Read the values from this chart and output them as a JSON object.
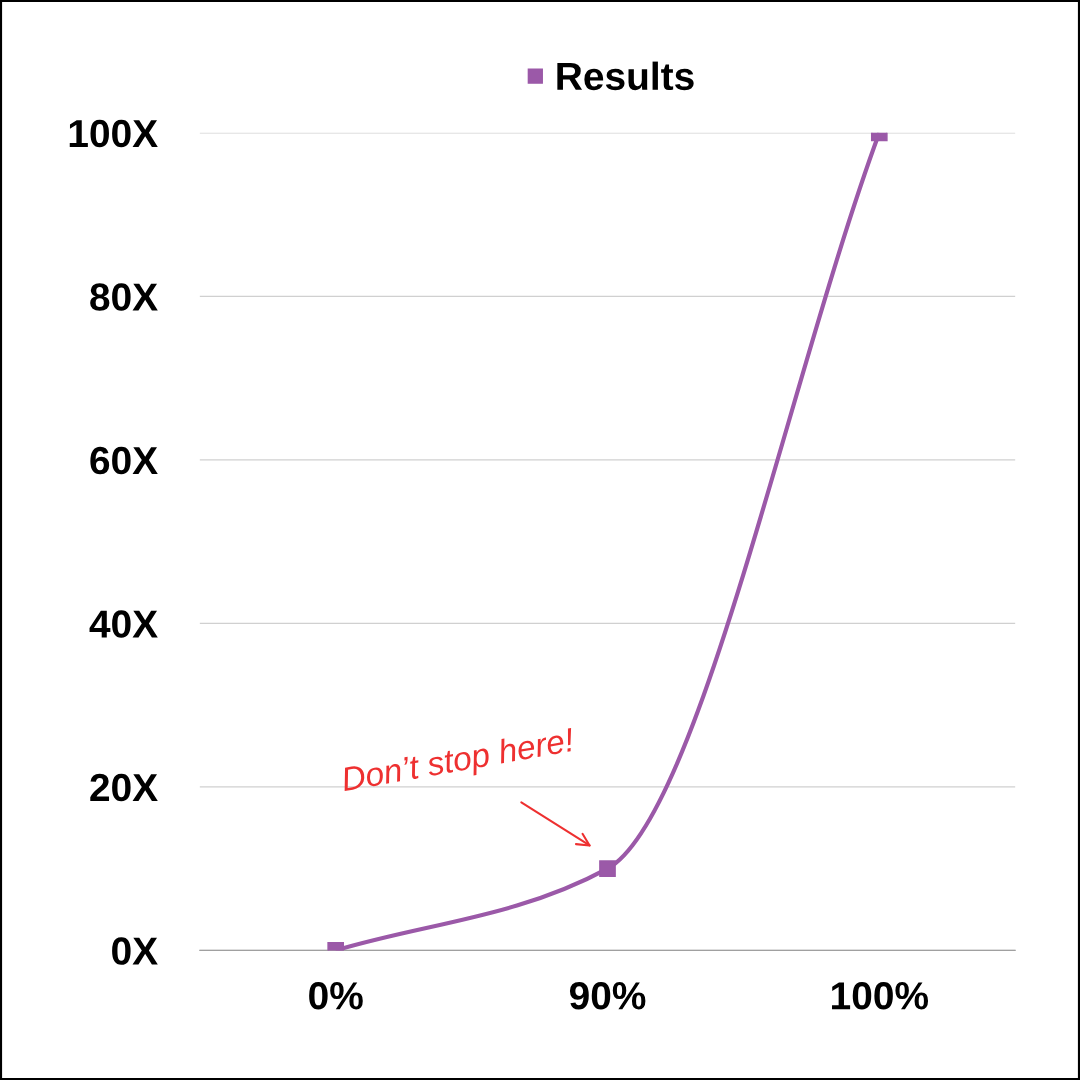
{
  "chart_data": {
    "type": "line",
    "categories": [
      "0%",
      "90%",
      "100%"
    ],
    "series": [
      {
        "name": "Results",
        "color": "#9b59a8",
        "values": [
          0,
          10,
          100
        ]
      }
    ],
    "ylim": [
      0,
      100
    ],
    "yticks": [
      {
        "value": 0,
        "label": "0X"
      },
      {
        "value": 20,
        "label": "20X"
      },
      {
        "value": 40,
        "label": "40X"
      },
      {
        "value": 60,
        "label": "60X"
      },
      {
        "value": 80,
        "label": "80X"
      },
      {
        "value": 100,
        "label": "100X"
      }
    ],
    "grid": "y",
    "legend": "top",
    "marker": "square",
    "line_style": "solid",
    "annotations": [
      {
        "text": "Don’t stop here!",
        "x": "90%",
        "y": 10
      }
    ]
  }
}
